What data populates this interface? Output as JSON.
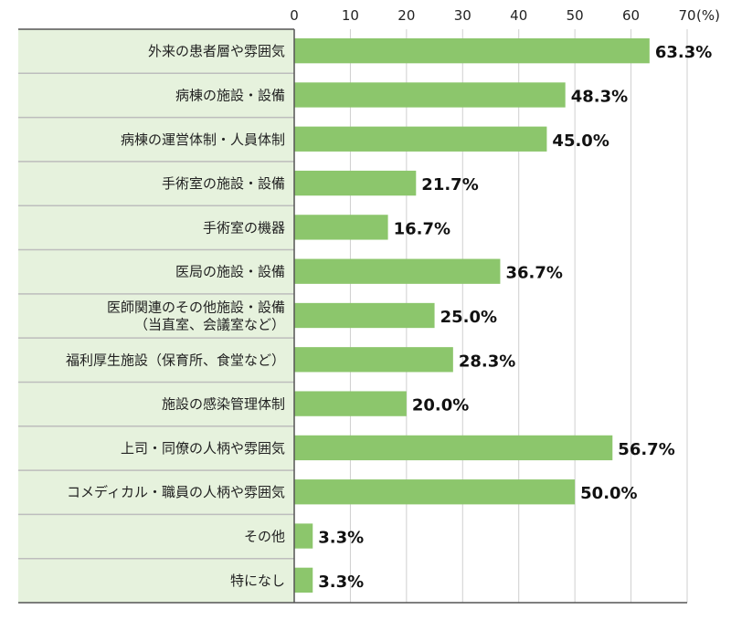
{
  "chart_data": {
    "type": "bar",
    "orientation": "horizontal",
    "unit_label": "(%)",
    "xlim": [
      0,
      70
    ],
    "ticks": [
      0,
      10,
      20,
      30,
      40,
      50,
      60,
      70
    ],
    "grid": true,
    "categories": [
      [
        "外来の患者層や雰囲気"
      ],
      [
        "病棟の施設・設備"
      ],
      [
        "病棟の運営体制・人員体制"
      ],
      [
        "手術室の施設・設備"
      ],
      [
        "手術室の機器"
      ],
      [
        "医局の施設・設備"
      ],
      [
        "医師関連のその他施設・設備",
        "（当直室、会議室など）"
      ],
      [
        "福利厚生施設（保育所、食堂など）"
      ],
      [
        "施設の感染管理体制"
      ],
      [
        "上司・同僚の人柄や雰囲気"
      ],
      [
        "コメディカル・職員の人柄や雰囲気"
      ],
      [
        "その他"
      ],
      [
        "特になし"
      ]
    ],
    "values": [
      63.3,
      48.3,
      45.0,
      21.7,
      16.7,
      36.7,
      25.0,
      28.3,
      20.0,
      56.7,
      50.0,
      3.3,
      3.3
    ],
    "value_labels": [
      "63.3%",
      "48.3%",
      "45.0%",
      "21.7%",
      "16.7%",
      "36.7%",
      "25.0%",
      "28.3%",
      "20.0%",
      "56.7%",
      "50.0%",
      "3.3%",
      "3.3%"
    ],
    "colors": {
      "bar": "#8cc66c",
      "label_bg": "#e6f2dd",
      "grid": "#cfcfcf",
      "axis": "#555555",
      "separator": "#bdbdbd"
    }
  }
}
